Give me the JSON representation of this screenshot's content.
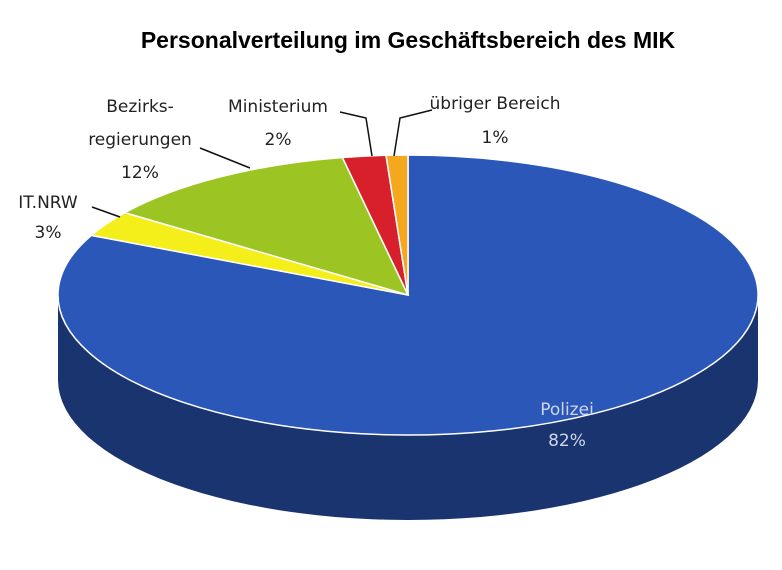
{
  "chart_data": {
    "type": "pie3d",
    "title": "Personalverteilung im Geschäftsbereich des MIK",
    "categories": [
      "Polizei",
      "IT.NRW",
      "Bezirks-\nregierungen",
      "Ministerium",
      "übriger Bereich"
    ],
    "values": [
      82,
      3,
      12,
      2,
      1
    ],
    "value_labels": [
      "82%",
      "3%",
      "12%",
      "2%",
      "1%"
    ],
    "colors": [
      "#2b57b9",
      "#f4ee1b",
      "#9cc524",
      "#d7202b",
      "#f3a81d"
    ]
  }
}
